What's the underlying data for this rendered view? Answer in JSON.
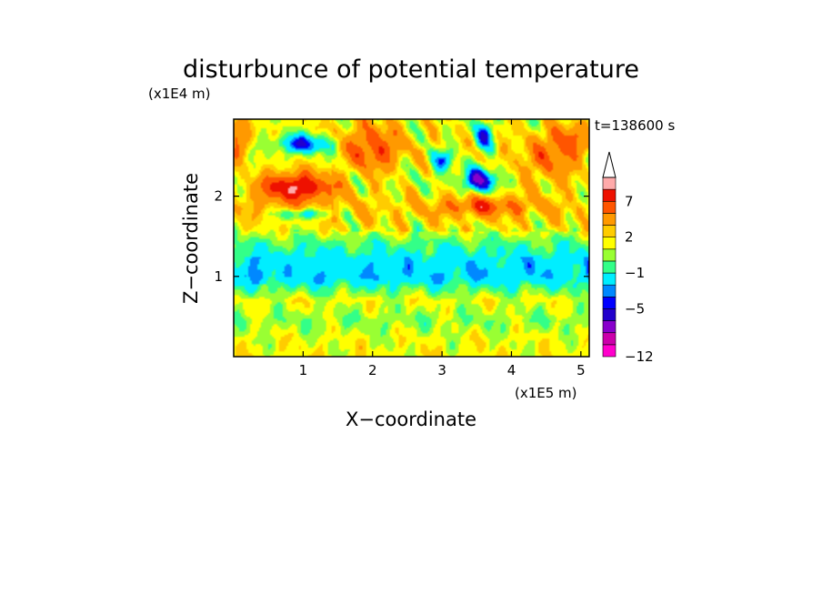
{
  "chart_data": {
    "type": "heatmap",
    "title": "disturbunce of potential temperature",
    "time_label": "t=138600 s",
    "xlabel": "X−coordinate",
    "ylabel": "Z−coordinate",
    "x_unit_label": "(x1E5 m)",
    "y_unit_label": "(x1E4 m)",
    "xlim": [
      0,
      5.12
    ],
    "ylim": [
      0,
      2.96
    ],
    "x_ticks": [
      1,
      2,
      3,
      4,
      5
    ],
    "y_ticks": [
      1,
      2
    ],
    "x_tick_labels": [
      "1",
      "2",
      "3",
      "4",
      "5"
    ],
    "y_tick_labels": [
      "1",
      "2"
    ],
    "colorbar": {
      "levels": [
        -12,
        -11,
        -9,
        -7,
        -5,
        -4,
        -3,
        -1,
        0,
        1,
        2,
        3,
        5,
        7,
        9,
        11
      ],
      "labels": [
        {
          "level": 7,
          "text": "7"
        },
        {
          "level": 2,
          "text": "2"
        },
        {
          "level": -1,
          "text": "−1"
        },
        {
          "level": -5,
          "text": "−5"
        },
        {
          "level": -12,
          "text": "−12"
        }
      ],
      "colors": [
        "#ff00cc",
        "#cc00aa",
        "#8800cc",
        "#2200cc",
        "#0000ff",
        "#0088ff",
        "#00eeff",
        "#33ff88",
        "#99ff33",
        "#ffff00",
        "#ffcc00",
        "#ff9900",
        "#ff5500",
        "#ee1100",
        "#ffaaaa"
      ],
      "extend": "max"
    },
    "features": [
      {
        "x": 0.9,
        "z": 2.12,
        "value": 8,
        "sx": 0.55,
        "sz": 0.18
      },
      {
        "x": 1.0,
        "z": 2.65,
        "value": -6,
        "sx": 0.4,
        "sz": 0.12
      },
      {
        "x": 1.0,
        "z": 1.78,
        "value": -4,
        "sx": 0.35,
        "sz": 0.07
      },
      {
        "x": 3.6,
        "z": 1.88,
        "value": 4,
        "sx": 0.6,
        "sz": 0.12
      },
      {
        "x": 3.55,
        "z": 2.2,
        "value": -7,
        "sx": 0.25,
        "sz": 0.15
      },
      {
        "x": 3.6,
        "z": 2.75,
        "value": -5,
        "sx": 0.15,
        "sz": 0.18
      },
      {
        "x": 3.0,
        "z": 2.45,
        "value": -5,
        "sx": 0.15,
        "sz": 0.12
      },
      {
        "x": 2.0,
        "z": 2.6,
        "value": 5,
        "sx": 0.4,
        "sz": 0.3
      },
      {
        "x": 4.5,
        "z": 2.4,
        "value": 3,
        "sx": 0.5,
        "sz": 0.3
      },
      {
        "x": 4.8,
        "z": 2.7,
        "value": 4,
        "sx": 0.3,
        "sz": 0.2
      },
      {
        "x": 0.05,
        "z": 2.7,
        "value": 4,
        "sx": 0.15,
        "sz": 0.25
      }
    ]
  }
}
